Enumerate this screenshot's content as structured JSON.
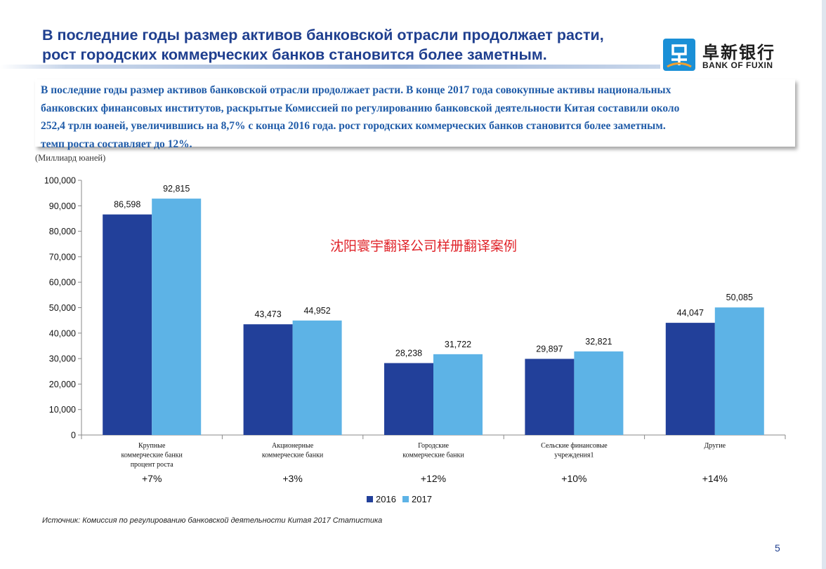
{
  "header": {
    "title_line1": "В последние годы размер активов банковской отрасли продолжает расти,",
    "title_line2": "рост городских коммерческих банков  становится более заметным.",
    "logo_cn": "阜新银行",
    "logo_en": "BANK OF FUXIN",
    "brand_color": "#1f3f8f"
  },
  "summary": {
    "line1": "В последние годы размер активов банковской отрасли продолжает расти. В конце 2017 года совокупные активы национальных",
    "line2": "банковских финансовых институтов, раскрытые Комиссией по регулированию банковской деятельности Китая составили около",
    "line3": "252,4 трлн юаней, увеличившись на 8,7% с конца 2016 года. рост городских коммерческих банков  становится более заметным.",
    "line4": "темп роста составляет до 12%."
  },
  "units_label": "(Миллиард юаней)",
  "watermark": "沈阳寰宇翻译公司样册翻译案例",
  "source": "Источник: Комиссия по регулированию банковской деятельности Китая 2017 Статистика",
  "page_number": "5",
  "chart_data": {
    "type": "bar",
    "categories": [
      [
        "Крупные",
        "коммерческие банки",
        "процент роста"
      ],
      [
        "Акционерные",
        "коммерческие банки"
      ],
      [
        "Городские",
        "коммерческие банки"
      ],
      [
        "Сельские финансовые",
        "учреждения1"
      ],
      [
        "Другие"
      ]
    ],
    "growth": [
      "+7%",
      "+3%",
      "+12%",
      "+10%",
      "+14%"
    ],
    "series": [
      {
        "name": "2016",
        "color": "#22409a",
        "values": [
          86598,
          43473,
          28238,
          29897,
          44047
        ]
      },
      {
        "name": "2017",
        "color": "#5db3e6",
        "values": [
          92815,
          44952,
          31722,
          32821,
          50085
        ]
      }
    ],
    "ylim": [
      0,
      100000
    ],
    "yticks": [
      0,
      10000,
      20000,
      30000,
      40000,
      50000,
      60000,
      70000,
      80000,
      90000,
      100000
    ],
    "ytick_labels": [
      "0",
      "10,000",
      "20,000",
      "30,000",
      "40,000",
      "50,000",
      "60,000",
      "70,000",
      "80,000",
      "90,000",
      "100,000"
    ],
    "data_labels": [
      [
        "86,598",
        "43,473",
        "28,238",
        "29,897",
        "44,047"
      ],
      [
        "92,815",
        "44,952",
        "31,722",
        "32,821",
        "50,085"
      ]
    ],
    "legend_position": "bottom",
    "grid": false
  }
}
